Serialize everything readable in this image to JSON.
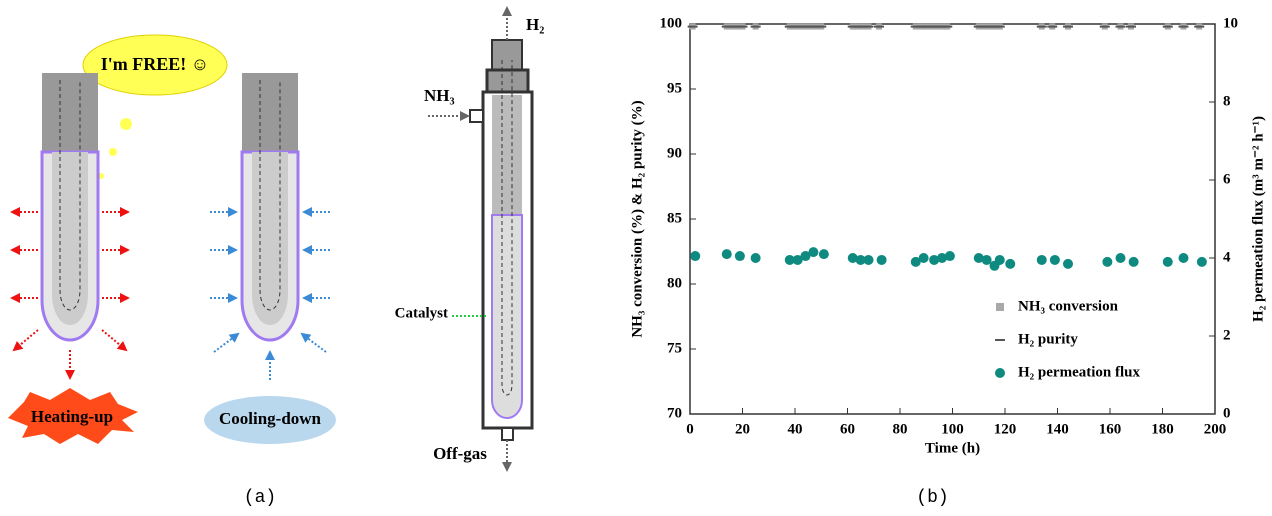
{
  "diagram": {
    "bubble": "I'm FREE! ☺",
    "heating": "Heating-up",
    "cooling": "Cooling-down",
    "h2": "H₂",
    "nh3": "NH₃",
    "catalyst": "Catalyst",
    "offgas": "Off-gas",
    "caption": "(a)"
  },
  "chart_data": {
    "type": "scatter",
    "caption": "(b)",
    "xlabel": "Time (h)",
    "ylabel": "NH₃ conversion (%) & H₂ purity (%)",
    "y2label": "H₂ permeation flux (m³ m⁻² h⁻¹)",
    "xlim": [
      0,
      200
    ],
    "xticks": [
      0,
      20,
      40,
      60,
      80,
      100,
      120,
      140,
      160,
      180,
      200
    ],
    "ylim": [
      70,
      100
    ],
    "yticks": [
      70,
      75,
      80,
      85,
      90,
      95,
      100
    ],
    "y2lim": [
      0,
      10
    ],
    "y2ticks": [
      0,
      2,
      4,
      6,
      8,
      10
    ],
    "series": [
      {
        "name": "NH₃ conversion",
        "color": "#a8a8a8",
        "marker": "square",
        "x": [
          1,
          14,
          16,
          18,
          20,
          25,
          38,
          40,
          42,
          44,
          46,
          48,
          50,
          62,
          64,
          66,
          68,
          72,
          86,
          88,
          90,
          92,
          94,
          96,
          98,
          110,
          112,
          114,
          116,
          118,
          134,
          138,
          144,
          158,
          164,
          168,
          182,
          188,
          194
        ],
        "values": [
          99.8,
          99.8,
          99.8,
          99.8,
          99.8,
          99.8,
          99.8,
          99.8,
          99.8,
          99.8,
          99.8,
          99.8,
          99.8,
          99.8,
          99.8,
          99.8,
          99.8,
          99.8,
          99.8,
          99.8,
          99.8,
          99.8,
          99.8,
          99.8,
          99.8,
          99.8,
          99.8,
          99.8,
          99.8,
          99.8,
          99.8,
          99.8,
          99.8,
          99.8,
          99.8,
          99.8,
          99.8,
          99.8,
          99.8
        ]
      },
      {
        "name": "H₂ purity",
        "color": "#555555",
        "marker": "dash",
        "x": [
          1,
          14,
          16,
          18,
          20,
          25,
          38,
          40,
          42,
          44,
          46,
          48,
          50,
          62,
          64,
          66,
          68,
          72,
          86,
          88,
          90,
          92,
          94,
          96,
          98,
          110,
          112,
          114,
          116,
          118,
          134,
          138,
          144,
          158,
          164,
          168,
          182,
          188,
          194
        ],
        "values": [
          99.8,
          99.8,
          99.8,
          99.8,
          99.8,
          99.8,
          99.8,
          99.8,
          99.8,
          99.8,
          99.8,
          99.8,
          99.8,
          99.8,
          99.8,
          99.8,
          99.8,
          99.8,
          99.8,
          99.8,
          99.8,
          99.8,
          99.8,
          99.8,
          99.8,
          99.8,
          99.8,
          99.8,
          99.8,
          99.8,
          99.8,
          99.8,
          99.8,
          99.8,
          99.8,
          99.8,
          99.8,
          99.8,
          99.8
        ]
      },
      {
        "name": "H₂ permeation flux",
        "color": "#0e8a80",
        "marker": "circle",
        "axis": "y2",
        "x": [
          2,
          14,
          19,
          25,
          38,
          41,
          44,
          47,
          51,
          62,
          65,
          68,
          73,
          86,
          89,
          93,
          96,
          99,
          110,
          113,
          116,
          118,
          122,
          134,
          139,
          144,
          159,
          164,
          169,
          182,
          188,
          195
        ],
        "values": [
          4.05,
          4.1,
          4.05,
          4.0,
          3.95,
          3.95,
          4.05,
          4.15,
          4.1,
          4.0,
          3.95,
          3.95,
          3.95,
          3.9,
          4.0,
          3.95,
          4.0,
          4.05,
          4.0,
          3.95,
          3.8,
          3.95,
          3.85,
          3.95,
          3.95,
          3.85,
          3.9,
          4.0,
          3.9,
          3.9,
          4.0,
          3.9
        ]
      }
    ]
  }
}
